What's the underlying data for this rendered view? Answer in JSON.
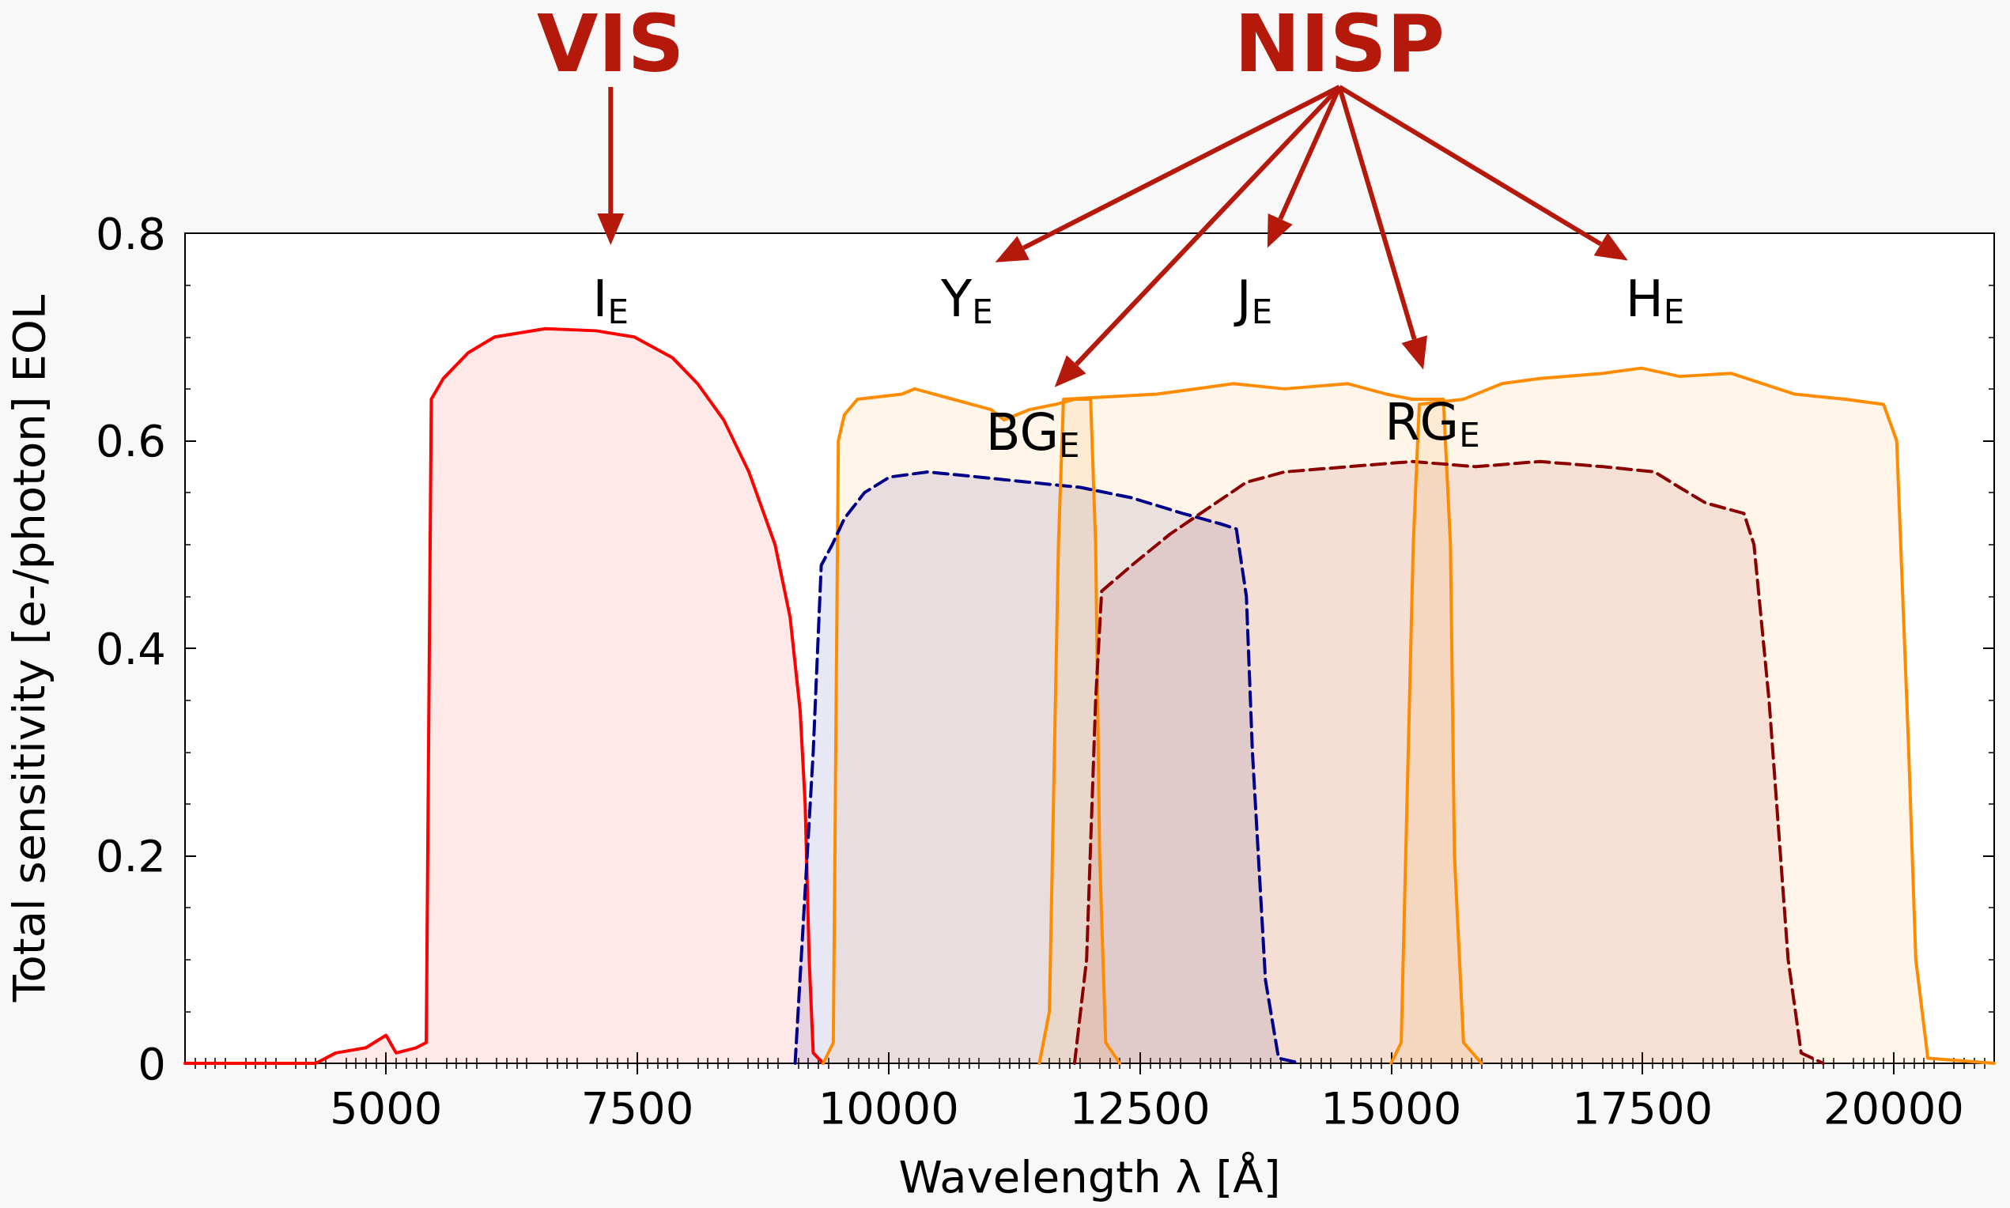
{
  "chart_data": {
    "type": "area",
    "xlabel": "Wavelength λ [Å]",
    "ylabel": "Total sensitivity [e-/photon] EOL",
    "xlim": [
      3000,
      21000
    ],
    "xticks": [
      5000,
      7500,
      10000,
      12500,
      15000,
      17500,
      20000
    ],
    "ylim": [
      0,
      0.8
    ],
    "yticks": [
      0,
      0.2,
      0.4,
      0.6,
      0.8
    ],
    "series": [
      {
        "color": "#ff0000",
        "line_style": "solid",
        "x": [
          3000,
          4300,
          4500,
          4800,
          5000,
          5100,
          5300,
          5400,
          5450,
          5570,
          5820,
          6080,
          6585,
          7090,
          7470,
          7850,
          8100,
          8360,
          8610,
          8870,
          9020,
          9120,
          9170,
          9210,
          9250,
          9350
        ],
        "values": [
          0,
          0,
          0.01,
          0.015,
          0.027,
          0.01,
          0.015,
          0.02,
          0.64,
          0.66,
          0.685,
          0.7,
          0.708,
          0.706,
          0.7,
          0.68,
          0.655,
          0.62,
          0.57,
          0.5,
          0.43,
          0.34,
          0.25,
          0.1,
          0.01,
          0
        ]
      },
      {
        "color": "#ff8c00",
        "line_style": "solid",
        "x": [
          9350,
          9450,
          9500,
          9560,
          9690,
          10135,
          10260,
          10640,
          11020,
          11150,
          11400,
          11660,
          11850,
          12010,
          12060,
          12100,
          12160,
          12300
        ],
        "values": [
          0,
          0.02,
          0.6,
          0.625,
          0.64,
          0.645,
          0.65,
          0.64,
          0.63,
          0.62,
          0.63,
          0.635,
          0.64,
          0.64,
          0.5,
          0.2,
          0.02,
          0
        ]
      },
      {
        "color": "#00008b",
        "line_style": "dashed",
        "x": [
          9070,
          9250,
          9330,
          9440,
          9560,
          9760,
          10010,
          10390,
          10900,
          11400,
          11910,
          12420,
          12925,
          13300,
          13460,
          13560,
          13620,
          13750,
          13880,
          14100
        ],
        "values": [
          0,
          0.3,
          0.48,
          0.5,
          0.525,
          0.55,
          0.565,
          0.57,
          0.565,
          0.56,
          0.555,
          0.545,
          0.53,
          0.52,
          0.515,
          0.45,
          0.3,
          0.08,
          0.005,
          0
        ]
      },
      {
        "color": "#ff8c00",
        "line_style": "solid",
        "x": [
          11500,
          11600,
          11690,
          11740,
          12670,
          13430,
          13940,
          14570,
          14950,
          15210,
          15520,
          15590,
          15630,
          15720,
          15900
        ],
        "values": [
          0,
          0.05,
          0.5,
          0.64,
          0.645,
          0.655,
          0.65,
          0.655,
          0.645,
          0.64,
          0.64,
          0.5,
          0.2,
          0.02,
          0
        ]
      },
      {
        "color": "#8b0000",
        "line_style": "dashed",
        "x": [
          11850,
          11970,
          12060,
          12120,
          12420,
          12800,
          13180,
          13560,
          13940,
          14570,
          15210,
          15840,
          16480,
          17110,
          17620,
          17870,
          18130,
          18510,
          18610,
          18760,
          18950,
          19080,
          19300
        ],
        "values": [
          0,
          0.1,
          0.35,
          0.455,
          0.48,
          0.51,
          0.535,
          0.56,
          0.57,
          0.575,
          0.58,
          0.575,
          0.58,
          0.575,
          0.57,
          0.555,
          0.54,
          0.53,
          0.5,
          0.35,
          0.1,
          0.01,
          0
        ]
      },
      {
        "color": "#ff8c00",
        "line_style": "solid",
        "x": [
          15000,
          15100,
          15220,
          15280,
          15720,
          16100,
          16480,
          17110,
          17490,
          17870,
          18380,
          19010,
          19520,
          19900,
          20030,
          20150,
          20220,
          20340,
          21000
        ],
        "values": [
          0,
          0.02,
          0.5,
          0.635,
          0.64,
          0.655,
          0.66,
          0.665,
          0.67,
          0.662,
          0.665,
          0.645,
          0.64,
          0.635,
          0.6,
          0.3,
          0.1,
          0.005,
          0
        ]
      }
    ],
    "annotations": [
      "VIS",
      "NISP",
      "I$_{E}$",
      "Y$_{E}$",
      "BG$_{E}$",
      "J$_{E}$",
      "RG$_{E}$",
      "H$_{E}$"
    ]
  }
}
